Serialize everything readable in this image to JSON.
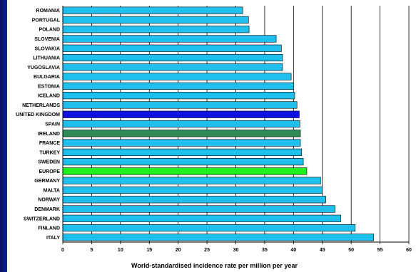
{
  "chart_data": {
    "type": "bar",
    "orientation": "horizontal",
    "categories": [
      "ROMANIA",
      "PORTUGAL",
      "POLAND",
      "SLOVENIA",
      "SLOVAKIA",
      "LITHUANIA",
      "YUGOSLAVIA",
      "BULGARIA",
      "ESTONIA",
      "ICELAND",
      "NETHERLANDS",
      "UNITED KINGDOM",
      "SPAIN",
      "IRELAND",
      "FRANCE",
      "TURKEY",
      "SWEDEN",
      "EUROPE",
      "GERMANY",
      "MALTA",
      "NORWAY",
      "DENMARK",
      "SWITZERLAND",
      "FINLAND",
      "ITALY"
    ],
    "values": [
      31.2,
      32.2,
      32.3,
      37.0,
      37.9,
      38.1,
      38.1,
      39.6,
      40.0,
      40.2,
      40.6,
      41.0,
      41.1,
      41.2,
      41.2,
      41.4,
      41.7,
      42.3,
      44.7,
      45.0,
      45.6,
      47.2,
      48.2,
      50.7,
      53.9
    ],
    "bar_colors": [
      "#20c0ee",
      "#20c0ee",
      "#20c0ee",
      "#20c0ee",
      "#20c0ee",
      "#20c0ee",
      "#20c0ee",
      "#20c0ee",
      "#20c0ee",
      "#20c0ee",
      "#20c0ee",
      "#1010e0",
      "#20c0ee",
      "#2e8b57",
      "#20c0ee",
      "#20c0ee",
      "#20c0ee",
      "#1ef01e",
      "#20c0ee",
      "#20c0ee",
      "#20c0ee",
      "#20c0ee",
      "#20c0ee",
      "#20c0ee",
      "#20c0ee"
    ],
    "xlabel": "World-standardised incidence rate per million per year",
    "ylabel": "",
    "xlim": [
      0,
      60
    ],
    "xticks": [
      "0",
      "5",
      "10",
      "15",
      "20",
      "25",
      "30",
      "35",
      "40",
      "45",
      "50",
      "55",
      "60"
    ],
    "grid": true
  }
}
